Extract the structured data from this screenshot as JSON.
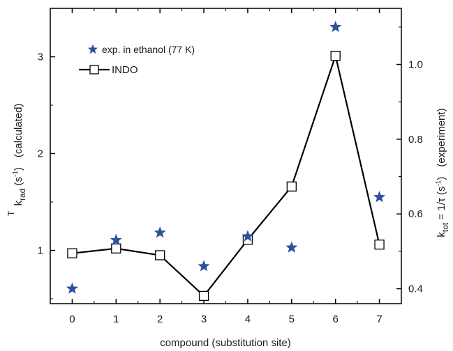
{
  "chart_data": {
    "type": "line",
    "xlabel": "compound (substitution site)",
    "x_ticks": [
      "0",
      "1",
      "2",
      "3",
      "4",
      "5",
      "6",
      "7"
    ],
    "xlim": [
      -0.5,
      7.5
    ],
    "left_axis": {
      "label_main": "k",
      "label_sup": "T",
      "label_sub": "rad",
      "label_rest": " (s",
      "label_unit_sup": "-1",
      "label_close": ")",
      "label_note": "(calculated)",
      "ylim": [
        0.45,
        3.5
      ],
      "ticks": [
        1,
        2,
        3
      ],
      "tick_labels": [
        "1",
        "2",
        "3"
      ]
    },
    "right_axis": {
      "label_main": "k",
      "label_sub": "tot",
      "label_rest": " = 1/τ (s",
      "label_unit_sup": "-1",
      "label_close": ")",
      "label_note": "(experiment)",
      "ylim": [
        0.36,
        1.15
      ],
      "ticks": [
        0.4,
        0.6,
        0.8,
        1.0
      ],
      "tick_labels": [
        "0.4",
        "0.6",
        "0.8",
        "1.0"
      ]
    },
    "series": [
      {
        "name": "exp. in ethanol (77 K)",
        "marker": "star",
        "axis": "right",
        "color": "#2f4fa0",
        "x": [
          0,
          1,
          2,
          3,
          4,
          5,
          6,
          7
        ],
        "y": [
          0.4,
          0.53,
          0.55,
          0.46,
          0.54,
          0.51,
          1.1,
          0.645
        ]
      },
      {
        "name": "INDO",
        "marker": "open-square",
        "axis": "left",
        "color": "#000000",
        "x": [
          0,
          1,
          2,
          3,
          4,
          5,
          6,
          7
        ],
        "y": [
          0.97,
          1.02,
          0.95,
          0.53,
          1.11,
          1.66,
          3.01,
          1.06
        ]
      }
    ],
    "legend_position": "top-left"
  }
}
